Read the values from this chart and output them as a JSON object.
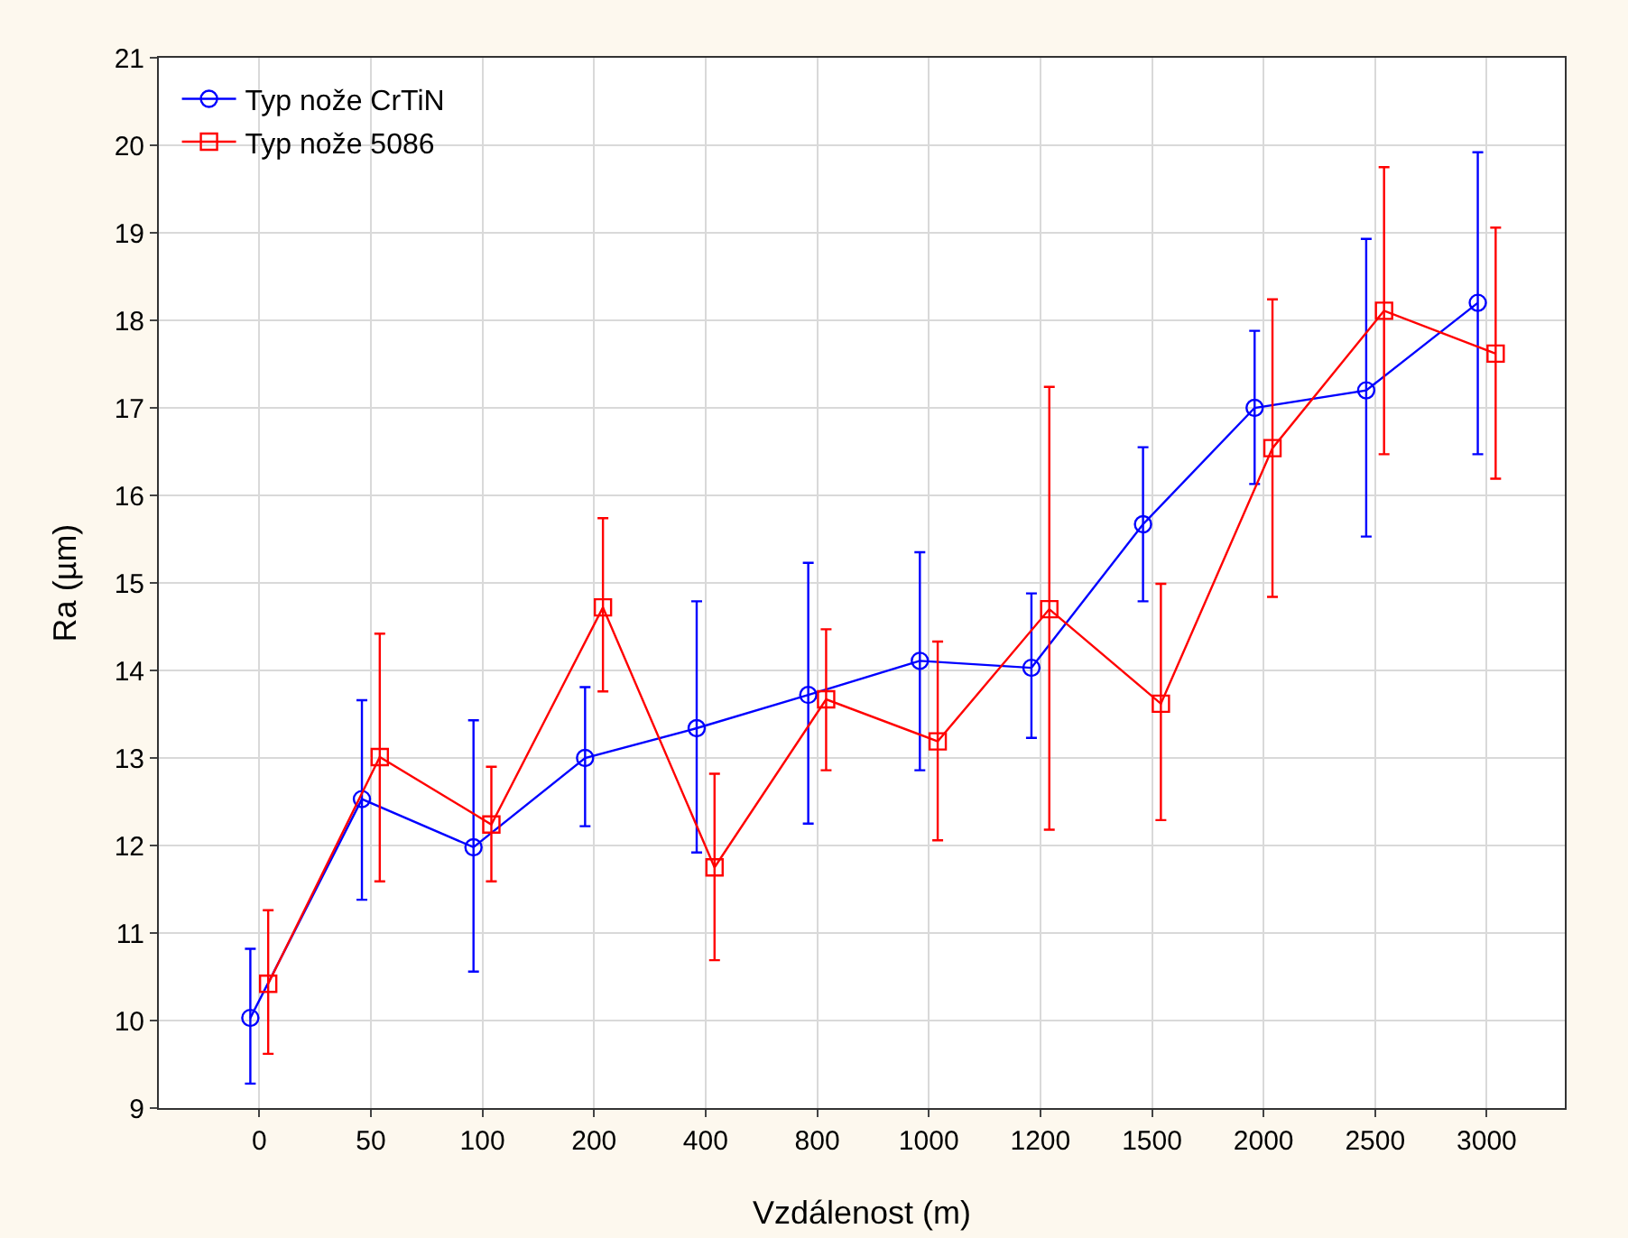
{
  "chart_data": {
    "type": "line",
    "xlabel": "Vzdálenost (m)",
    "ylabel": "Ra (µm)",
    "categories": [
      "0",
      "50",
      "100",
      "200",
      "400",
      "800",
      "1000",
      "1200",
      "1500",
      "2000",
      "2500",
      "3000"
    ],
    "series": [
      {
        "name": "Typ nože CrTiN",
        "color": "#0000ff",
        "marker": "circle",
        "values": [
          10.03,
          12.53,
          11.98,
          13.0,
          13.34,
          13.72,
          14.11,
          14.03,
          15.67,
          17.0,
          17.2,
          18.2
        ],
        "errors": [
          [
            9.28,
            10.82
          ],
          [
            11.38,
            13.66
          ],
          [
            10.56,
            13.43
          ],
          [
            12.22,
            13.81
          ],
          [
            11.92,
            14.79
          ],
          [
            12.25,
            15.23
          ],
          [
            12.86,
            15.35
          ],
          [
            13.23,
            14.88
          ],
          [
            14.79,
            16.55
          ],
          [
            16.13,
            17.88
          ],
          [
            15.53,
            18.93
          ],
          [
            16.47,
            19.92
          ]
        ]
      },
      {
        "name": "Typ nože 5086",
        "color": "#ff0000",
        "marker": "square",
        "values": [
          10.42,
          13.01,
          12.24,
          14.72,
          11.75,
          13.67,
          13.19,
          14.7,
          13.62,
          16.54,
          18.11,
          17.62
        ],
        "errors": [
          [
            9.62,
            11.26
          ],
          [
            11.59,
            14.42
          ],
          [
            11.59,
            12.9
          ],
          [
            13.76,
            15.74
          ],
          [
            10.69,
            12.82
          ],
          [
            12.86,
            14.47
          ],
          [
            12.06,
            14.33
          ],
          [
            12.18,
            17.24
          ],
          [
            12.29,
            14.99
          ],
          [
            14.84,
            18.24
          ],
          [
            16.47,
            19.75
          ],
          [
            16.19,
            19.06
          ]
        ]
      }
    ],
    "ylim": [
      9,
      21
    ],
    "yticks": [
      9,
      10,
      11,
      12,
      13,
      14,
      15,
      16,
      17,
      18,
      19,
      20,
      21
    ],
    "grid": true,
    "legend": "top left",
    "line_style": "solid"
  }
}
